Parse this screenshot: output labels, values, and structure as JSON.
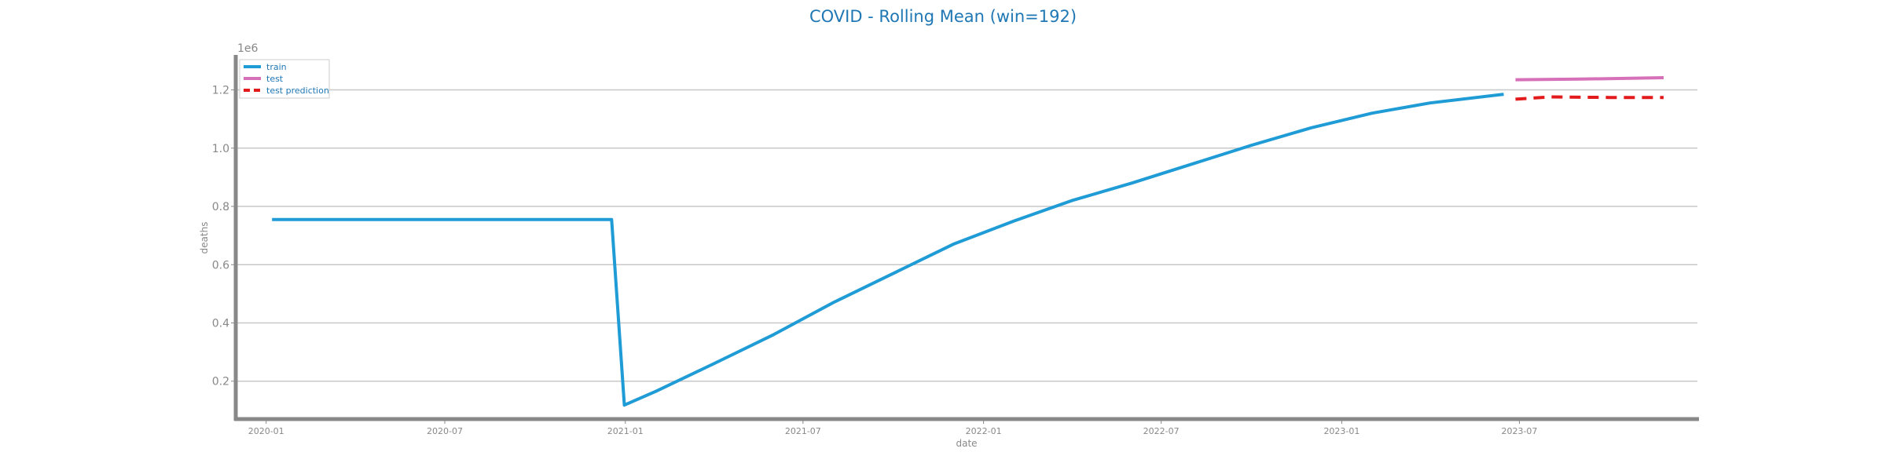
{
  "chart_data": {
    "type": "line",
    "title": "COVID - Rolling Mean (win=192)",
    "xlabel": "date",
    "ylabel": "deaths",
    "y_multiplier_label": "1e6",
    "x_range": [
      "2019-12-01",
      "2023-12-31"
    ],
    "ylim": [
      0.07,
      1.32
    ],
    "x_ticks": [
      "2020-01",
      "2020-07",
      "2021-01",
      "2021-07",
      "2022-01",
      "2022-07",
      "2023-01",
      "2023-07"
    ],
    "y_ticks": [
      0.2,
      0.4,
      0.6,
      0.8,
      1.0,
      1.2
    ],
    "grid": "horizontal",
    "legend_position": "top-left",
    "colors": {
      "train": "#1f9bd5",
      "test": "#d670b8",
      "test_prediction": "#e31a1c",
      "title": "#1f77b4",
      "axis": "#888888"
    },
    "series": [
      {
        "name": "train",
        "style": "solid",
        "color": "#1f9bd5",
        "points": [
          [
            "2020-01-07",
            0.755
          ],
          [
            "2020-06-01",
            0.755
          ],
          [
            "2020-12-01",
            0.755
          ],
          [
            "2020-12-18",
            0.755
          ],
          [
            "2020-12-31",
            0.118
          ],
          [
            "2021-02-01",
            0.165
          ],
          [
            "2021-04-01",
            0.26
          ],
          [
            "2021-06-01",
            0.36
          ],
          [
            "2021-08-01",
            0.47
          ],
          [
            "2021-10-01",
            0.57
          ],
          [
            "2021-12-01",
            0.67
          ],
          [
            "2022-02-01",
            0.75
          ],
          [
            "2022-04-01",
            0.82
          ],
          [
            "2022-06-01",
            0.88
          ],
          [
            "2022-08-01",
            0.945
          ],
          [
            "2022-10-01",
            1.01
          ],
          [
            "2022-12-01",
            1.07
          ],
          [
            "2023-02-01",
            1.12
          ],
          [
            "2023-04-01",
            1.155
          ],
          [
            "2023-06-15",
            1.185
          ]
        ]
      },
      {
        "name": "test",
        "style": "solid",
        "color": "#d670b8",
        "points": [
          [
            "2023-06-27",
            1.235
          ],
          [
            "2023-09-01",
            1.237
          ],
          [
            "2023-11-25",
            1.242
          ]
        ]
      },
      {
        "name": "test prediction",
        "style": "dashed",
        "color": "#e31a1c",
        "points": [
          [
            "2023-06-27",
            1.168
          ],
          [
            "2023-08-01",
            1.176
          ],
          [
            "2023-10-01",
            1.174
          ],
          [
            "2023-11-25",
            1.174
          ]
        ]
      }
    ]
  }
}
